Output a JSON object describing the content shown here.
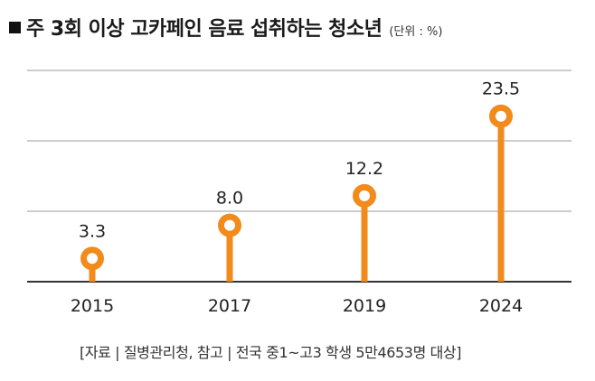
{
  "title": "주 3회 이상 고카페인 음료 섭취하는 청소년",
  "unit": "(단위 : %)",
  "source": "[자료 | 질병관리청, 참고 | 전국 중1~고3 학생 5만4653명 대상]",
  "colors": {
    "accent": "#F28A1C",
    "grid": "#999999",
    "baseline": "#333333",
    "text": "#222222"
  },
  "chart_data": {
    "type": "lollipop",
    "categories": [
      "2015",
      "2017",
      "2019",
      "2024"
    ],
    "values": [
      3.3,
      8.0,
      12.2,
      23.5
    ],
    "value_labels": [
      "3.3",
      "8.0",
      "12.2",
      "23.5"
    ],
    "ylim": [
      0,
      30
    ],
    "grid": true,
    "title": "주 3회 이상 고카페인 음료 섭취하는 청소년",
    "xlabel": "",
    "ylabel": ""
  }
}
